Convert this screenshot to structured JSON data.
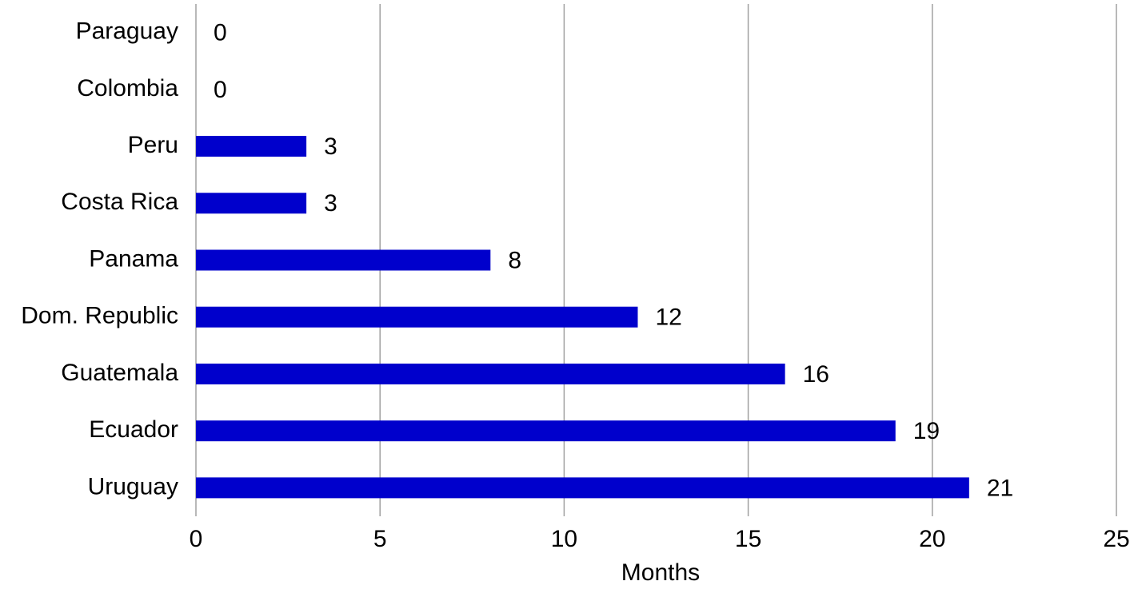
{
  "chart_data": {
    "type": "bar",
    "categories": [
      "Paraguay",
      "Colombia",
      "Peru",
      "Costa Rica",
      "Panama",
      "Dom. Republic",
      "Guatemala",
      "Ecuador",
      "Uruguay"
    ],
    "values": [
      0,
      0,
      3,
      3,
      8,
      12,
      16,
      19,
      21
    ],
    "color": "#0000cc",
    "xlim": [
      0,
      25
    ],
    "xticks": [
      0,
      5,
      10,
      15,
      20,
      25
    ],
    "xlabel": "Months",
    "grid": true,
    "data_labels": true
  }
}
